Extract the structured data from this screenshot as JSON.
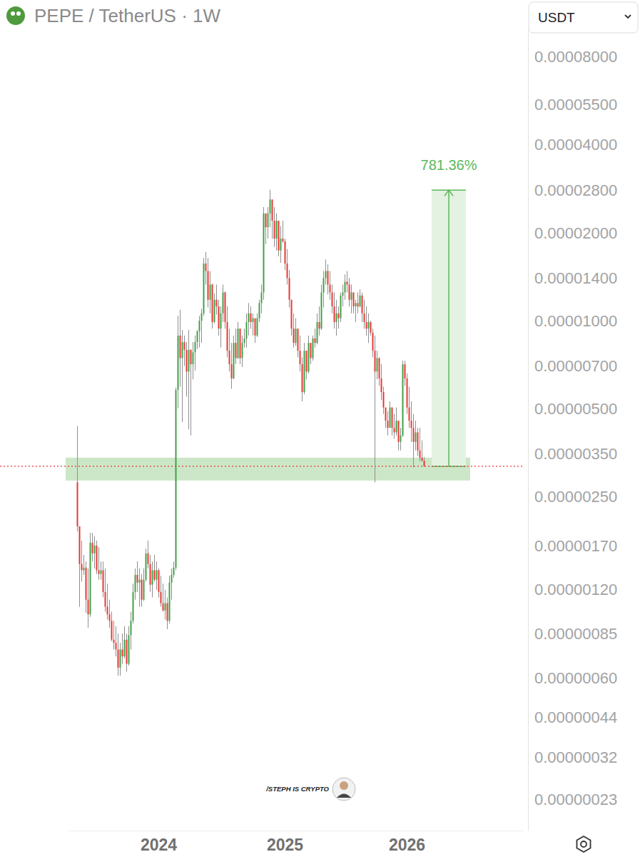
{
  "chart_data": {
    "type": "candlestick",
    "title": "PEPE / TetherUS · 1W",
    "currency": "USDT",
    "watermark": "/STEPH IS CRYPTO",
    "log": "y",
    "grid": false,
    "ylim": [
      1.8e-07,
      0.0001
    ],
    "yticks": [
      {
        "value": 8e-05,
        "label": "0.00008000"
      },
      {
        "value": 5.5e-05,
        "label": "0.00005500"
      },
      {
        "value": 4e-05,
        "label": "0.00004000"
      },
      {
        "value": 2.8e-05,
        "label": "0.00002800"
      },
      {
        "value": 2e-05,
        "label": "0.00002000"
      },
      {
        "value": 1.4e-05,
        "label": "0.00001400"
      },
      {
        "value": 1e-05,
        "label": "0.00001000"
      },
      {
        "value": 7e-06,
        "label": "0.00000700"
      },
      {
        "value": 5e-06,
        "label": "0.00000500"
      },
      {
        "value": 3.5e-06,
        "label": "0.00000350"
      },
      {
        "value": 2.5e-06,
        "label": "0.00000250"
      },
      {
        "value": 1.7e-06,
        "label": "0.00000170"
      },
      {
        "value": 1.2e-06,
        "label": "0.00000120"
      },
      {
        "value": 8.5e-07,
        "label": "0.00000085"
      },
      {
        "value": 6e-07,
        "label": "0.00000060"
      },
      {
        "value": 4.4e-07,
        "label": "0.00000044"
      },
      {
        "value": 3.2e-07,
        "label": "0.00000032"
      },
      {
        "value": 2.3e-07,
        "label": "0.00000023"
      }
    ],
    "current_price": 3.177e-06,
    "support_zone": [
      2.84e-06,
      3.4e-06
    ],
    "target": {
      "from": 3.177e-06,
      "to": 2.8e-05,
      "label": "781.36%"
    },
    "categories": [
      null,
      null,
      null,
      null,
      null,
      null,
      null,
      null,
      null,
      null,
      null,
      null,
      null,
      null,
      null,
      null,
      null,
      null,
      null,
      null,
      null,
      null,
      null,
      null,
      null,
      null,
      null,
      null,
      null,
      null,
      null,
      null,
      null,
      null,
      null,
      null,
      null,
      null,
      null,
      null,
      null,
      null,
      "2024",
      null,
      null,
      null,
      null,
      null,
      null,
      null,
      null,
      null,
      null,
      null,
      null,
      null,
      null,
      null,
      null,
      null,
      null,
      null,
      null,
      null,
      null,
      null,
      null,
      null,
      null,
      null,
      null,
      null,
      null,
      null,
      null,
      null,
      null,
      null,
      null,
      null,
      null,
      null,
      null,
      null,
      null,
      null,
      null,
      null,
      null,
      null,
      null,
      null,
      null,
      null,
      null,
      null,
      null,
      null,
      null,
      null,
      null,
      "2025",
      null,
      null,
      null,
      null,
      null,
      null,
      null,
      null,
      null,
      null,
      null,
      null,
      null,
      null,
      null,
      null,
      null,
      null,
      null,
      null,
      null,
      null,
      null,
      null,
      null,
      null,
      null,
      null,
      null,
      null,
      null,
      null,
      null,
      null,
      null,
      null,
      null,
      null,
      null,
      null,
      null,
      null,
      null,
      null,
      null,
      null,
      null,
      null,
      null,
      null,
      null,
      null,
      null,
      null,
      null,
      null,
      "2026",
      null,
      null,
      null,
      null,
      null,
      null,
      null,
      null,
      null,
      null,
      null,
      null,
      null,
      null,
      null,
      null,
      null,
      null,
      null,
      null,
      null,
      null,
      null,
      null,
      null,
      null,
      null,
      null,
      null,
      null,
      null,
      null,
      null,
      null,
      null,
      null,
      null,
      null,
      null,
      null,
      null,
      null,
      null,
      null,
      null,
      null,
      null,
      null,
      null,
      null,
      null,
      null,
      null,
      null
    ],
    "open": [
      null,
      null,
      null,
      null,
      2.8e-06,
      1.98e-06,
      1.47e-06,
      1.4e-06,
      1.43e-06,
      1.11e-06,
      9.9e-07,
      1.74e-06,
      1.6e-06,
      1.7e-06,
      1.4e-06,
      1.36e-06,
      1.4e-06,
      1.18e-06,
      1.05e-06,
      9.9e-07,
      9.4e-07,
      8.1e-07,
      7.9e-07,
      7.5e-07,
      6.5e-07,
      7.5e-07,
      7.1e-07,
      8.1e-07,
      6.7e-07,
      8.4e-07,
      9.4e-07,
      1.18e-06,
      1.35e-06,
      1.27e-06,
      1.3e-06,
      1.11e-06,
      1.3e-06,
      1.6e-06,
      1.47e-06,
      1.25e-06,
      1.4e-06,
      1.3e-06,
      1.4e-06,
      1.18e-06,
      1.08e-06,
      1.02e-06,
      1.08e-06,
      9.4e-07,
      1.27e-06,
      1.35e-06,
      1.43e-06,
      5.8e-06,
      8.9e-06,
      7.45e-06,
      8.45e-06,
      7.95e-06,
      6.7e-06,
      7.95e-06,
      7.1e-06,
      7.8e-06,
      8.45e-06,
      9.2e-06,
      1e-05,
      1.06e-05,
      1.57e-05,
      1.48e-05,
      1.18e-05,
      1.33e-05,
      9.9e-06,
      1.18e-05,
      1.12e-05,
      9.4e-06,
      1.06e-05,
      1.25e-05,
      9.9e-06,
      7.9e-06,
      7.1e-06,
      6.35e-06,
      8.4e-06,
      7.45e-06,
      9.4e-06,
      7.45e-06,
      8.4e-06,
      8.7e-06,
      9.9e-06,
      1.06e-05,
      9.9e-06,
      1.02e-05,
      8.9e-06,
      1.02e-05,
      1.15e-05,
      1.25e-05,
      2.33e-05,
      2.09e-05,
      2.33e-05,
      2.6e-05,
      2.2e-05,
      1.91e-05,
      2.2e-05,
      1.74e-05,
      1.91e-05,
      1.87e-05,
      1.57e-05,
      1.4e-05,
      1.18e-05,
      9.4e-06,
      8.4e-06,
      9.4e-06,
      7.9e-06,
      7.1e-06,
      5.7e-06,
      7.9e-06,
      6.7e-06,
      8.4e-06,
      7.45e-06,
      8.7e-06,
      8.4e-06,
      9.9e-06,
      9.4e-06,
      1.25e-05,
      1.4e-05,
      1.48e-05,
      1.33e-05,
      1.25e-05,
      1.12e-05,
      9.9e-06,
      1.06e-05,
      1.02e-05,
      1.22e-05,
      1.25e-05,
      1.36e-05,
      1.33e-05,
      1.18e-05,
      1.25e-05,
      1.12e-05,
      1.15e-05,
      1.12e-05,
      1.22e-05,
      1.06e-05,
      9.9e-06,
      9.4e-06,
      9.9e-06,
      9.1e-06,
      7.9e-06,
      6.7e-06,
      7.45e-06,
      6.35e-06,
      5.7e-06,
      5.05e-06,
      4.55e-06,
      4.3e-06,
      5.05e-06,
      4.3e-06,
      4.15e-06,
      4.55e-06,
      3.85e-06,
      4.05e-06,
      7.1e-06,
      6.35e-06,
      5.05e-06,
      4.55e-06,
      4.3e-06,
      3.85e-06,
      4.15e-06,
      3.6e-06,
      3.4e-06,
      3.32e-06,
      null,
      null,
      null,
      null,
      null,
      null,
      null,
      null,
      null,
      null,
      null,
      null,
      null,
      null,
      null,
      null,
      null,
      null,
      null,
      null,
      null,
      null,
      null,
      null,
      null,
      null,
      null,
      null,
      null,
      null,
      null,
      null,
      null,
      null,
      null,
      null,
      null,
      null,
      null,
      null,
      null,
      null,
      null,
      null,
      null,
      null
    ],
    "high": [
      null,
      null,
      null,
      null,
      4.36e-06,
      1.98e-06,
      1.77e-06,
      1.58e-06,
      1.5e-06,
      1.42e-06,
      1.88e-06,
      1.88e-06,
      1.83e-06,
      1.77e-06,
      1.68e-06,
      1.5e-06,
      1.5e-06,
      1.42e-06,
      1.26e-06,
      1.11e-06,
      1.01e-06,
      9.4e-07,
      9e-07,
      8.5e-07,
      7.9e-07,
      8.5e-07,
      9e-07,
      8.5e-07,
      9e-07,
      1.01e-06,
      1.26e-06,
      1.42e-06,
      1.5e-06,
      1.42e-06,
      1.36e-06,
      1.42e-06,
      1.66e-06,
      1.77e-06,
      1.58e-06,
      1.5e-06,
      1.58e-06,
      1.5e-06,
      1.42e-06,
      1.34e-06,
      1.26e-06,
      1.2e-06,
      1.13e-06,
      1.34e-06,
      1.42e-06,
      1.5e-06,
      5.9e-06,
      1.04e-05,
      1.09e-05,
      9.3e-06,
      8.9e-06,
      8.45e-06,
      9.3e-06,
      8e-06,
      8.45e-06,
      8.9e-06,
      9.3e-06,
      1.04e-05,
      1.1e-05,
      1.64e-05,
      1.72e-05,
      1.64e-05,
      1.48e-05,
      1.34e-05,
      1.24e-05,
      1.33e-05,
      1.18e-05,
      1.12e-05,
      1.33e-05,
      1.26e-05,
      1.12e-05,
      9.4e-06,
      8.4e-06,
      8.9e-06,
      9.4e-06,
      9.9e-06,
      9.4e-06,
      8.9e-06,
      9.4e-06,
      1.06e-05,
      1.15e-05,
      1.12e-05,
      1.06e-05,
      1.02e-05,
      1.06e-05,
      1.18e-05,
      1.33e-05,
      2.45e-05,
      2.33e-05,
      2.45e-05,
      2.81e-05,
      2.6e-05,
      2.45e-05,
      2.33e-05,
      2.2e-05,
      2.11e-05,
      2.2e-05,
      1.91e-05,
      1.76e-05,
      1.49e-05,
      1.18e-05,
      1.06e-05,
      1.02e-05,
      9.4e-06,
      8.9e-06,
      7.5e-06,
      8.4e-06,
      7.9e-06,
      8.9e-06,
      8.4e-06,
      8.9e-06,
      9.4e-06,
      1.06e-05,
      1.12e-05,
      1.33e-05,
      1.48e-05,
      1.62e-05,
      1.56e-05,
      1.48e-05,
      1.33e-05,
      1.25e-05,
      1.18e-05,
      1.12e-05,
      1.25e-05,
      1.33e-05,
      1.44e-05,
      1.48e-05,
      1.4e-05,
      1.33e-05,
      1.25e-05,
      1.18e-05,
      1.25e-05,
      1.28e-05,
      1.25e-05,
      1.18e-05,
      1.12e-05,
      1.06e-05,
      1e-05,
      9.4e-06,
      8.9e-06,
      7.9e-06,
      7.5e-06,
      7.1e-06,
      5.95e-06,
      5.05e-06,
      4.9e-06,
      5.3e-06,
      5.05e-06,
      4.8e-06,
      5.05e-06,
      4.55e-06,
      4.3e-06,
      7.3e-06,
      7.3e-06,
      6.6e-06,
      5.95e-06,
      5.3e-06,
      4.8e-06,
      4.55e-06,
      4.3e-06,
      4.3e-06,
      3.9e-06,
      3.42e-06,
      null,
      null,
      null,
      null,
      null,
      null,
      null,
      null,
      null,
      null,
      null,
      null,
      null,
      null,
      null,
      null,
      null,
      null,
      null,
      null,
      null,
      null,
      null,
      null,
      null,
      null,
      null,
      null,
      null,
      null,
      null,
      null,
      null,
      null,
      null,
      null,
      null,
      null,
      null,
      null,
      null,
      null,
      null,
      null,
      null,
      null
    ],
    "low": [
      null,
      null,
      null,
      null,
      1.9e-06,
      1.05e-06,
      1.28e-06,
      1.35e-06,
      1e-06,
      8.9e-07,
      9.7e-07,
      1.5e-06,
      1.42e-06,
      1.36e-06,
      1.3e-06,
      1.3e-06,
      1.13e-06,
      1.01e-06,
      9.5e-07,
      8.9e-07,
      8e-07,
      7.5e-07,
      7.1e-07,
      6.1e-07,
      6.1e-07,
      6.7e-07,
      7e-07,
      6.3e-07,
      6.6e-07,
      7.5e-07,
      9.2e-07,
      1.11e-06,
      1.18e-06,
      1.05e-06,
      1.05e-06,
      1.1e-06,
      1.28e-06,
      1.42e-06,
      1.18e-06,
      1.13e-06,
      1.28e-06,
      1.2e-06,
      1.13e-06,
      1.05e-06,
      1.01e-06,
      9.5e-07,
      8.8e-07,
      9.2e-07,
      1.11e-06,
      1.32e-06,
      1.4e-06,
      5.02e-06,
      5.95e-06,
      4.5e-06,
      7e-06,
      5.5e-06,
      4.25e-06,
      4.05e-06,
      6.3e-06,
      6.75e-06,
      8e-06,
      8.1e-06,
      8.4e-06,
      1.04e-05,
      1.33e-05,
      1.11e-05,
      1.06e-05,
      9.4e-06,
      9.8e-06,
      1.05e-05,
      8.9e-06,
      8.1e-06,
      9.9e-06,
      9.4e-06,
      7.5e-06,
      6.7e-06,
      5.85e-06,
      6.3e-06,
      7.1e-06,
      7.4e-06,
      7.1e-06,
      6.95e-06,
      8.1e-06,
      8.1e-06,
      8.9e-06,
      9.4e-06,
      8.9e-06,
      8.4e-06,
      8.8e-06,
      9.9e-06,
      1.06e-05,
      1.18e-05,
      1.83e-05,
      1.91e-05,
      2.09e-05,
      1.91e-05,
      1.79e-05,
      1.74e-05,
      1.66e-05,
      1.58e-05,
      1.85e-05,
      1.49e-05,
      1.33e-05,
      1.11e-05,
      8.9e-06,
      8.1e-06,
      8.2e-06,
      7.5e-06,
      6.7e-06,
      5.3e-06,
      5.6e-06,
      6.3e-06,
      6.6e-06,
      7.1e-06,
      7.3e-06,
      8.1e-06,
      8.3e-06,
      8.9e-06,
      9.3e-06,
      1.11e-05,
      1.33e-05,
      1.23e-05,
      1.18e-05,
      1.06e-05,
      9.4e-06,
      8.9e-06,
      9.4e-06,
      9.9e-06,
      1.12e-05,
      1.18e-05,
      1.25e-05,
      1.12e-05,
      1.06e-05,
      1.06e-05,
      9.9e-06,
      1.06e-05,
      1.11e-05,
      9.9e-06,
      9.4e-06,
      8.9e-06,
      8.4e-06,
      8.9e-06,
      7.5e-06,
      2.8e-06,
      6.3e-06,
      6e-06,
      5.35e-06,
      4.8e-06,
      4.3e-06,
      4.05e-06,
      4.3e-06,
      4.05e-06,
      3.95e-06,
      4.05e-06,
      3.6e-06,
      3.6e-06,
      4e-06,
      6e-06,
      4.8e-06,
      4.3e-06,
      3.85e-06,
      3.15e-06,
      3.6e-06,
      3.45e-06,
      3.3e-06,
      3.3e-06,
      3.17e-06,
      null,
      null,
      null,
      null,
      null,
      null,
      null,
      null,
      null,
      null,
      null,
      null,
      null,
      null,
      null,
      null,
      null,
      null,
      null,
      null,
      null,
      null,
      null,
      null,
      null,
      null,
      null,
      null,
      null,
      null,
      null,
      null,
      null,
      null,
      null,
      null,
      null,
      null,
      null,
      null,
      null,
      null,
      null,
      null,
      null,
      null
    ],
    "close": [
      null,
      null,
      null,
      null,
      1.98e-06,
      1.47e-06,
      1.4e-06,
      1.43e-06,
      1.11e-06,
      9.9e-07,
      1.74e-06,
      1.6e-06,
      1.7e-06,
      1.4e-06,
      1.36e-06,
      1.4e-06,
      1.18e-06,
      1.05e-06,
      9.9e-07,
      9.4e-07,
      8.1e-07,
      7.9e-07,
      7.5e-07,
      6.5e-07,
      7.5e-07,
      7.1e-07,
      8.1e-07,
      6.7e-07,
      8.4e-07,
      9.4e-07,
      1.18e-06,
      1.35e-06,
      1.27e-06,
      1.3e-06,
      1.11e-06,
      1.3e-06,
      1.6e-06,
      1.47e-06,
      1.25e-06,
      1.4e-06,
      1.3e-06,
      1.4e-06,
      1.18e-06,
      1.08e-06,
      1.02e-06,
      1.08e-06,
      9.4e-07,
      1.27e-06,
      1.35e-06,
      1.43e-06,
      5.8e-06,
      8.9e-06,
      7.45e-06,
      8.45e-06,
      7.95e-06,
      6.7e-06,
      7.95e-06,
      7.1e-06,
      7.8e-06,
      8.45e-06,
      9.2e-06,
      1e-05,
      1.06e-05,
      1.57e-05,
      1.48e-05,
      1.18e-05,
      1.33e-05,
      9.9e-06,
      1.18e-05,
      1.12e-05,
      9.4e-06,
      1.06e-05,
      1.25e-05,
      9.9e-06,
      7.9e-06,
      7.1e-06,
      6.35e-06,
      8.4e-06,
      7.45e-06,
      9.4e-06,
      7.45e-06,
      8.4e-06,
      8.7e-06,
      9.9e-06,
      1.06e-05,
      9.9e-06,
      1.02e-05,
      8.9e-06,
      1.02e-05,
      1.15e-05,
      1.25e-05,
      2.33e-05,
      2.09e-05,
      2.33e-05,
      2.6e-05,
      2.2e-05,
      1.91e-05,
      2.2e-05,
      1.74e-05,
      1.91e-05,
      1.87e-05,
      1.57e-05,
      1.4e-05,
      1.18e-05,
      9.4e-06,
      8.4e-06,
      9.4e-06,
      7.9e-06,
      7.1e-06,
      5.7e-06,
      7.9e-06,
      6.7e-06,
      8.4e-06,
      7.45e-06,
      8.7e-06,
      8.4e-06,
      9.9e-06,
      9.4e-06,
      1.25e-05,
      1.4e-05,
      1.48e-05,
      1.33e-05,
      1.25e-05,
      1.12e-05,
      9.9e-06,
      1.06e-05,
      1.02e-05,
      1.22e-05,
      1.25e-05,
      1.36e-05,
      1.33e-05,
      1.18e-05,
      1.25e-05,
      1.12e-05,
      1.15e-05,
      1.12e-05,
      1.22e-05,
      1.06e-05,
      9.9e-06,
      9.4e-06,
      9.9e-06,
      9.1e-06,
      7.9e-06,
      6.7e-06,
      7.45e-06,
      6.35e-06,
      5.7e-06,
      5.05e-06,
      4.55e-06,
      4.3e-06,
      5.05e-06,
      4.3e-06,
      4.15e-06,
      4.55e-06,
      3.85e-06,
      4.05e-06,
      7.1e-06,
      6.35e-06,
      5.05e-06,
      4.55e-06,
      4.3e-06,
      3.85e-06,
      4.15e-06,
      3.6e-06,
      3.4e-06,
      3.32e-06,
      3.177e-06,
      null,
      null,
      null,
      null,
      null,
      null,
      null,
      null,
      null,
      null,
      null,
      null,
      null,
      null,
      null,
      null,
      null,
      null,
      null,
      null,
      null,
      null,
      null,
      null,
      null,
      null,
      null,
      null,
      null,
      null,
      null,
      null,
      null,
      null,
      null,
      null,
      null,
      null,
      null,
      null,
      null,
      null,
      null,
      null,
      null,
      null
    ]
  }
}
